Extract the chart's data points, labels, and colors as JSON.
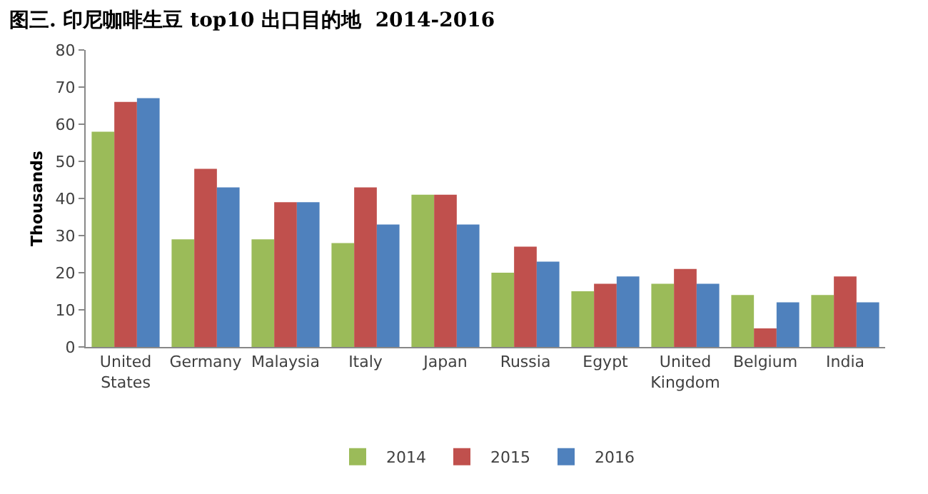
{
  "chart_data": {
    "type": "bar",
    "title": "图三. 印尼咖啡生豆 top10 出口目的地  2014-2016",
    "ylabel": "Thousands",
    "categories": [
      "United States",
      "Germany",
      "Malaysia",
      "Italy",
      "Japan",
      "Russia",
      "Egypt",
      "United Kingdom",
      "Belgium",
      "India"
    ],
    "series": [
      {
        "name": "2014",
        "color": "#9bbb59",
        "values": [
          58,
          29,
          29,
          28,
          41,
          20,
          15,
          17,
          14,
          14
        ]
      },
      {
        "name": "2015",
        "color": "#c0504d",
        "values": [
          66,
          48,
          39,
          43,
          41,
          27,
          17,
          21,
          5,
          19
        ]
      },
      {
        "name": "2016",
        "color": "#4f81bd",
        "values": [
          67,
          43,
          39,
          33,
          33,
          23,
          19,
          17,
          12,
          12
        ]
      }
    ],
    "ylim": [
      0,
      80
    ],
    "yticks": [
      0,
      10,
      20,
      30,
      40,
      50,
      60,
      70,
      80
    ],
    "legend": "bottom"
  }
}
